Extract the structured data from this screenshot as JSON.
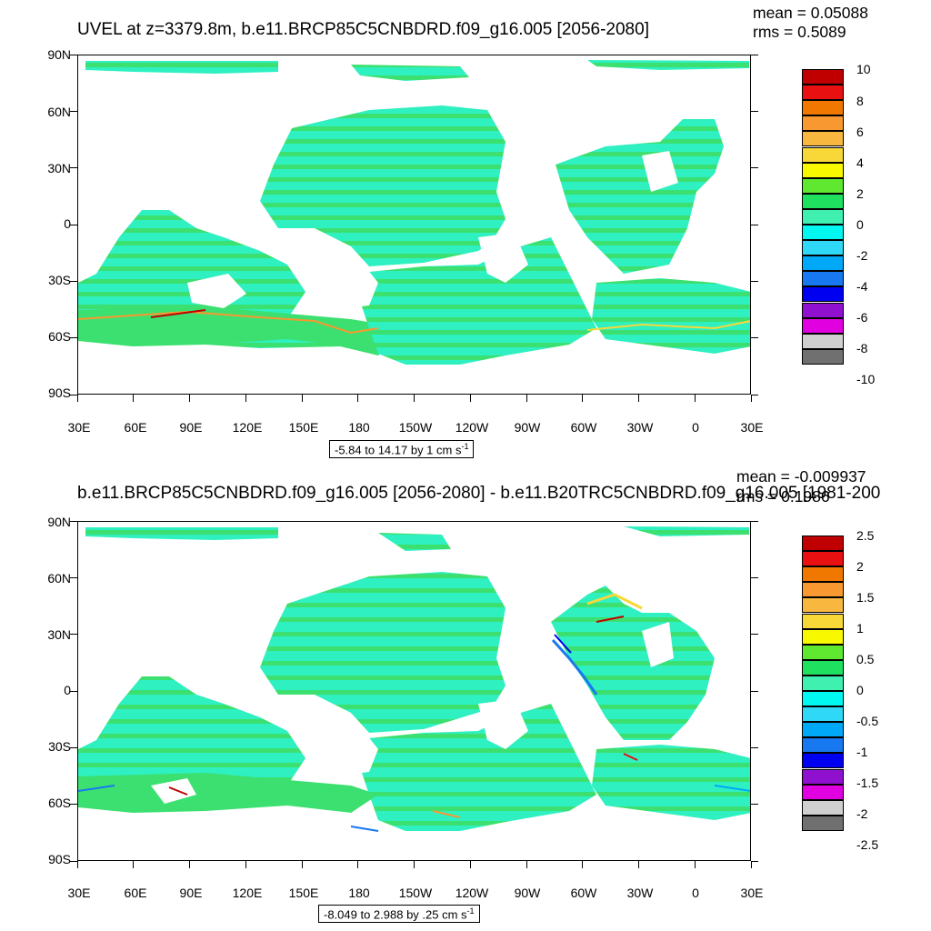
{
  "panels": [
    {
      "title": "UVEL at z=3379.8m, b.e11.BRCP85C5CNBDRD.f09_g16.005 [2056-2080]",
      "mean": "mean = 0.05088",
      "rms": "rms = 0.5089",
      "range": "-5.84 to 14.17 by 1 cm s",
      "range_unit_exp": "-1",
      "colorbar_labels": [
        "10",
        "8",
        "6",
        "4",
        "2",
        "0",
        "-2",
        "-4",
        "-6",
        "-8",
        "-10"
      ]
    },
    {
      "title": "b.e11.BRCP85C5CNBDRD.f09_g16.005 [2056-2080] - b.e11.B20TRC5CNBDRD.f09_g16.005 [1981-200",
      "mean": "mean = -0.009937",
      "rms": "rms = 0.1986",
      "range": "-8.049 to 2.988 by .25 cm s",
      "range_unit_exp": "-1",
      "colorbar_labels": [
        "2.5",
        "2",
        "1.5",
        "1",
        "0.5",
        "0",
        "-0.5",
        "-1",
        "-1.5",
        "-2",
        "-2.5"
      ]
    }
  ],
  "lat_labels": [
    "90N",
    "60N",
    "30N",
    "0",
    "30S",
    "60S",
    "90S"
  ],
  "lon_labels": [
    "30E",
    "60E",
    "90E",
    "120E",
    "150E",
    "180",
    "150W",
    "120W",
    "90W",
    "60W",
    "30W",
    "0",
    "30E"
  ],
  "colors": {
    "colorbar": [
      "#c00000",
      "#e81010",
      "#f07800",
      "#f89830",
      "#f8b840",
      "#f8d838",
      "#f8f800",
      "#60e830",
      "#20e060",
      "#40f0b0",
      "#00f8f0",
      "#30d8f8",
      "#00a8f8",
      "#1878f0",
      "#0000f0",
      "#9010d0",
      "#e000e0",
      "#d0d0d0",
      "#707070"
    ],
    "ocean_main": "#2ef0c0",
    "ocean_green": "#3ce070",
    "land": "#ffffff"
  }
}
